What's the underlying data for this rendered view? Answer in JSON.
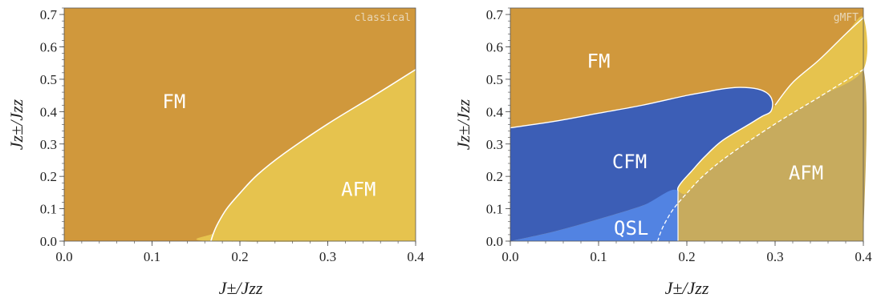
{
  "chart_data": [
    {
      "type": "area",
      "tag": "classical",
      "xlabel": "J±/Jzz",
      "ylabel": "Jz±/Jzz",
      "xlim": [
        0,
        0.4
      ],
      "ylim": [
        0,
        0.72
      ],
      "xticks": [
        "0.0",
        "0.1",
        "0.2",
        "0.3",
        "0.4"
      ],
      "yticks": [
        "0.0",
        "0.1",
        "0.2",
        "0.3",
        "0.4",
        "0.5",
        "0.6",
        "0.7"
      ],
      "grid": false,
      "legend": "none",
      "regions": [
        {
          "name": "FM",
          "label": "FM",
          "color": "#D0983C",
          "label_at": [
            0.125,
            0.43
          ]
        },
        {
          "name": "AFM",
          "label": "AFM",
          "color": "#E6C34E",
          "label_at": [
            0.335,
            0.16
          ],
          "boundary": [
            [
              0.4,
              0.53
            ],
            [
              0.35,
              0.445
            ],
            [
              0.3,
              0.362
            ],
            [
              0.25,
              0.27
            ],
            [
              0.22,
              0.205
            ],
            [
              0.2,
              0.148
            ],
            [
              0.185,
              0.1
            ],
            [
              0.175,
              0.055
            ],
            [
              0.17,
              0.025
            ],
            [
              0.167,
              0.0
            ]
          ]
        }
      ]
    },
    {
      "type": "area",
      "tag": "gMFT",
      "xlabel": "J±/Jzz",
      "ylabel": "Jz±/Jzz",
      "xlim": [
        0,
        0.4
      ],
      "ylim": [
        0,
        0.72
      ],
      "xticks": [
        "0.0",
        "0.1",
        "0.2",
        "0.3",
        "0.4"
      ],
      "yticks": [
        "0.0",
        "0.1",
        "0.2",
        "0.3",
        "0.4",
        "0.5",
        "0.6",
        "0.7"
      ],
      "grid": false,
      "legend": "none",
      "classical_boundary_dashed": [
        [
          0.4,
          0.53
        ],
        [
          0.35,
          0.445
        ],
        [
          0.3,
          0.362
        ],
        [
          0.25,
          0.27
        ],
        [
          0.22,
          0.205
        ],
        [
          0.2,
          0.148
        ],
        [
          0.185,
          0.1
        ],
        [
          0.175,
          0.055
        ],
        [
          0.17,
          0.025
        ],
        [
          0.167,
          0.0
        ]
      ],
      "regions": [
        {
          "name": "FM",
          "label": "FM",
          "color": "#D0983C",
          "label_at": [
            0.1,
            0.555
          ]
        },
        {
          "name": "CFM",
          "label": "CFM",
          "color": "#3C5EB6",
          "label_at": [
            0.135,
            0.245
          ],
          "boundary": [
            [
              0.0,
              0.35
            ],
            [
              0.05,
              0.37
            ],
            [
              0.1,
              0.395
            ],
            [
              0.15,
              0.42
            ],
            [
              0.2,
              0.45
            ],
            [
              0.22,
              0.46
            ],
            [
              0.24,
              0.47
            ],
            [
              0.26,
              0.475
            ],
            [
              0.28,
              0.47
            ],
            [
              0.292,
              0.455
            ],
            [
              0.297,
              0.43
            ],
            [
              0.295,
              0.4
            ],
            [
              0.285,
              0.385
            ],
            [
              0.27,
              0.36
            ],
            [
              0.24,
              0.31
            ],
            [
              0.22,
              0.26
            ],
            [
              0.205,
              0.215
            ],
            [
              0.195,
              0.185
            ],
            [
              0.19,
              0.165
            ],
            [
              0.19,
              0.155
            ],
            [
              0.15,
              0.11
            ],
            [
              0.1,
              0.068
            ],
            [
              0.05,
              0.03
            ],
            [
              0.0,
              0.0
            ]
          ]
        },
        {
          "name": "QSL",
          "label": "QSL",
          "color": "#5283E2",
          "label_at": [
            0.137,
            0.04
          ],
          "boundary": [
            [
              0.0,
              0.0
            ],
            [
              0.05,
              0.03
            ],
            [
              0.1,
              0.068
            ],
            [
              0.15,
              0.11
            ],
            [
              0.19,
              0.155
            ],
            [
              0.19,
              0.0
            ]
          ]
        },
        {
          "name": "AFM-gMFT",
          "label": "AFM",
          "color": "#C7AB5E",
          "label_at": [
            0.335,
            0.21
          ],
          "boundary": [
            [
              0.19,
              0.0
            ],
            [
              0.19,
              0.155
            ],
            [
              0.2,
              0.148
            ],
            [
              0.22,
              0.205
            ],
            [
              0.25,
              0.27
            ],
            [
              0.3,
              0.362
            ],
            [
              0.35,
              0.445
            ],
            [
              0.4,
              0.53
            ],
            [
              0.4,
              0.0
            ]
          ]
        },
        {
          "name": "AFM-sliver",
          "label": "",
          "color": "#E6C34E",
          "boundary": [
            [
              0.19,
              0.155
            ],
            [
              0.19,
              0.165
            ],
            [
              0.195,
              0.185
            ],
            [
              0.205,
              0.215
            ],
            [
              0.22,
              0.26
            ],
            [
              0.24,
              0.31
            ],
            [
              0.27,
              0.36
            ],
            [
              0.285,
              0.385
            ],
            [
              0.295,
              0.4
            ],
            [
              0.3,
              0.42
            ],
            [
              0.32,
              0.49
            ],
            [
              0.35,
              0.56
            ],
            [
              0.38,
              0.64
            ],
            [
              0.4,
              0.69
            ],
            [
              0.4,
              0.53
            ],
            [
              0.35,
              0.445
            ],
            [
              0.3,
              0.362
            ],
            [
              0.25,
              0.27
            ],
            [
              0.22,
              0.205
            ],
            [
              0.2,
              0.148
            ],
            [
              0.19,
              0.155
            ]
          ]
        }
      ]
    }
  ]
}
